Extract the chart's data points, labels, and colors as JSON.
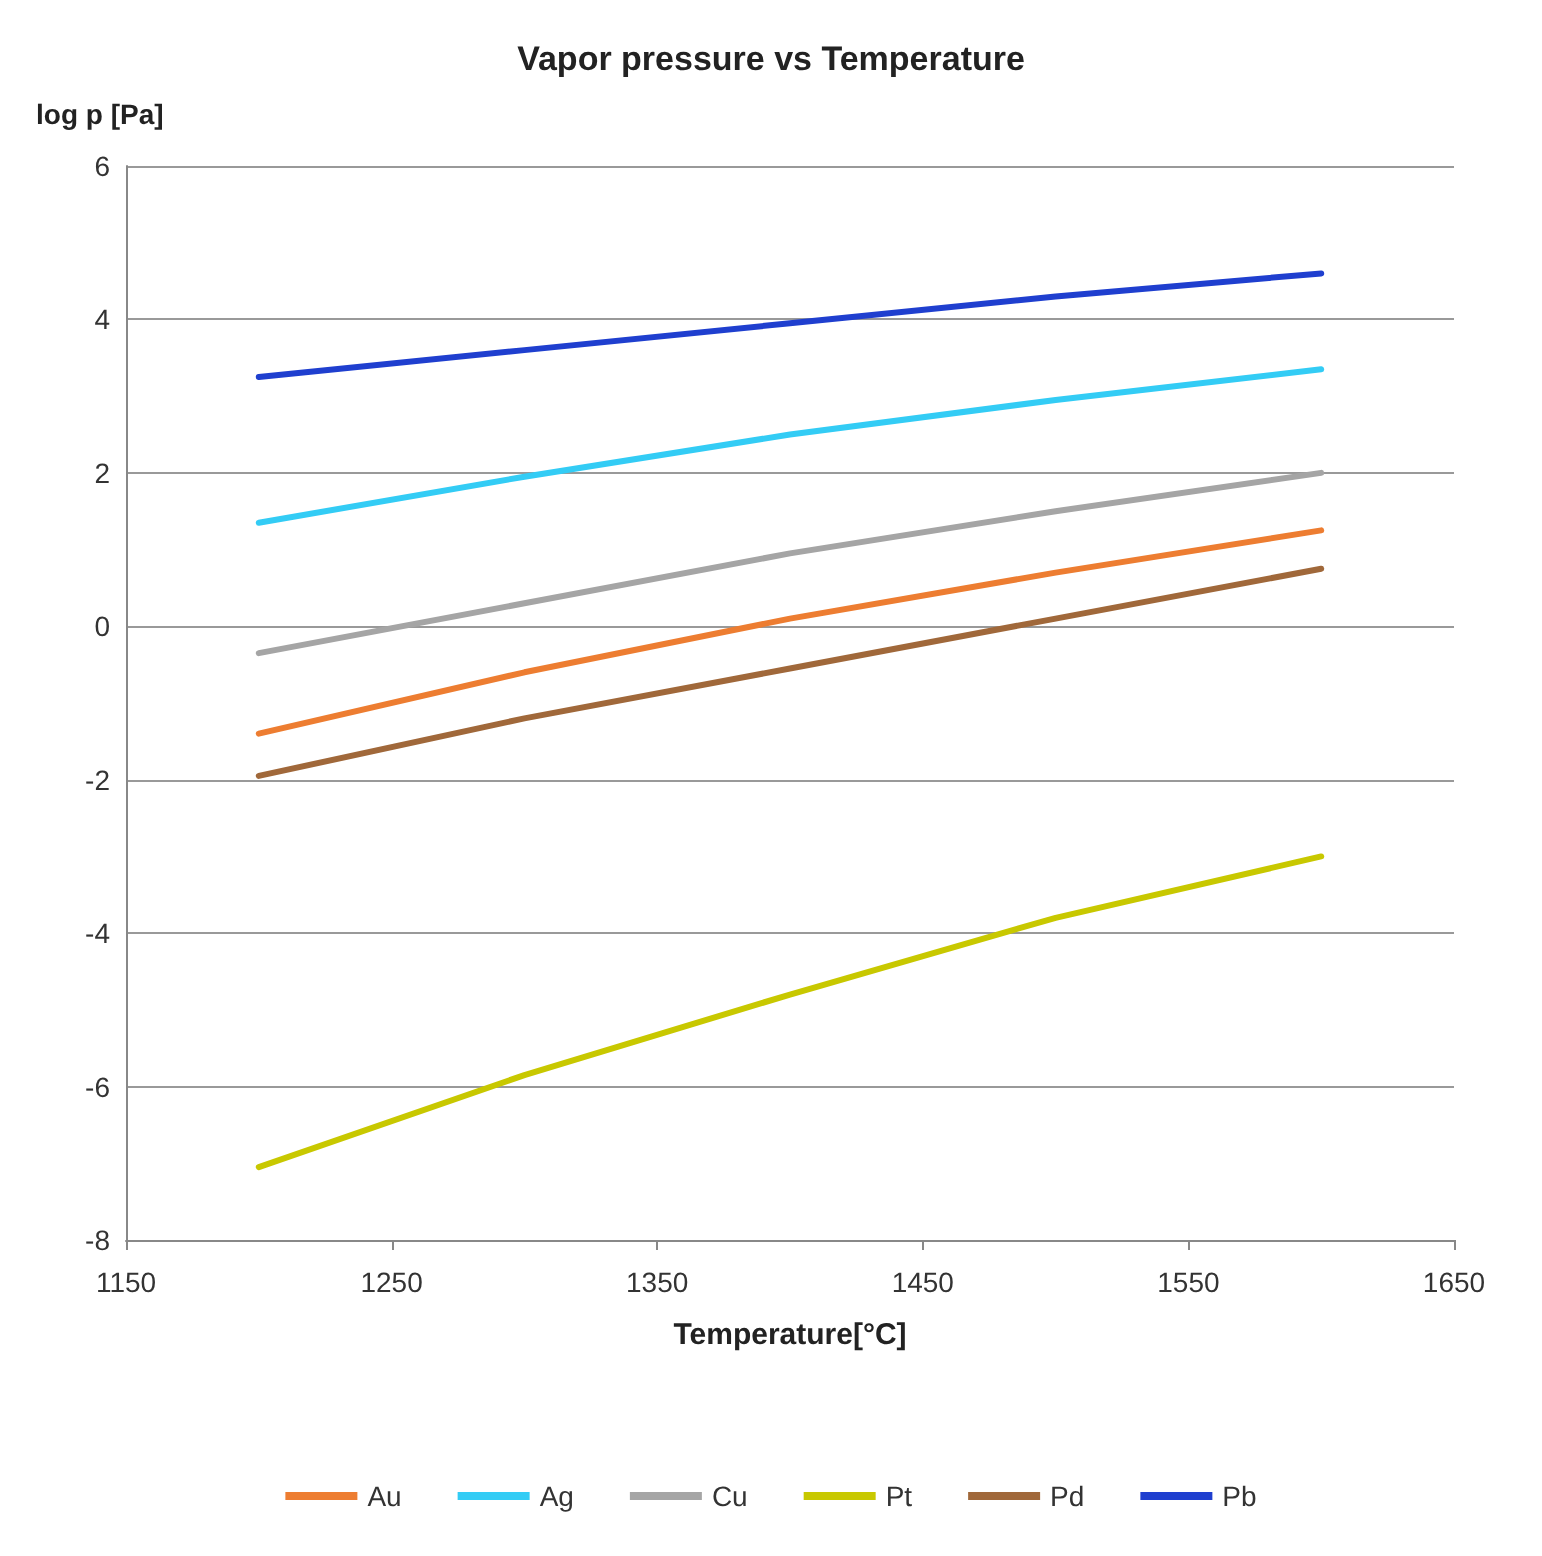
{
  "chart_data": {
    "type": "line",
    "title": "Vapor pressure vs Temperature",
    "xlabel": "Temperature[°C]",
    "ylabel": "log p [Pa]",
    "x": [
      1200,
      1300,
      1400,
      1500,
      1600
    ],
    "series": [
      {
        "name": "Au",
        "color": "#ed7d31",
        "values": [
          -1.4,
          -0.6,
          0.1,
          0.7,
          1.25
        ]
      },
      {
        "name": "Ag",
        "color": "#33ccf5",
        "values": [
          1.35,
          1.95,
          2.5,
          2.95,
          3.35
        ]
      },
      {
        "name": "Cu",
        "color": "#a5a5a5",
        "values": [
          -0.35,
          0.3,
          0.95,
          1.5,
          2.0
        ]
      },
      {
        "name": "Pt",
        "color": "#c8c800",
        "values": [
          -7.05,
          -5.85,
          -4.8,
          -3.8,
          -3.0
        ]
      },
      {
        "name": "Pd",
        "color": "#a0683a",
        "values": [
          -1.95,
          -1.2,
          -0.55,
          0.1,
          0.75
        ]
      },
      {
        "name": "Pb",
        "color": "#1f3fcf",
        "values": [
          3.25,
          3.6,
          3.95,
          4.3,
          4.6
        ]
      }
    ],
    "xlim": [
      1150,
      1650
    ],
    "xticks": [
      1150,
      1250,
      1350,
      1450,
      1550,
      1650
    ],
    "ylim": [
      -8,
      6
    ],
    "yticks": [
      -8,
      -6,
      -4,
      -2,
      0,
      2,
      4,
      6
    ],
    "grid": "y",
    "legend": "bottom",
    "marker": "none",
    "line_style": "solid"
  }
}
